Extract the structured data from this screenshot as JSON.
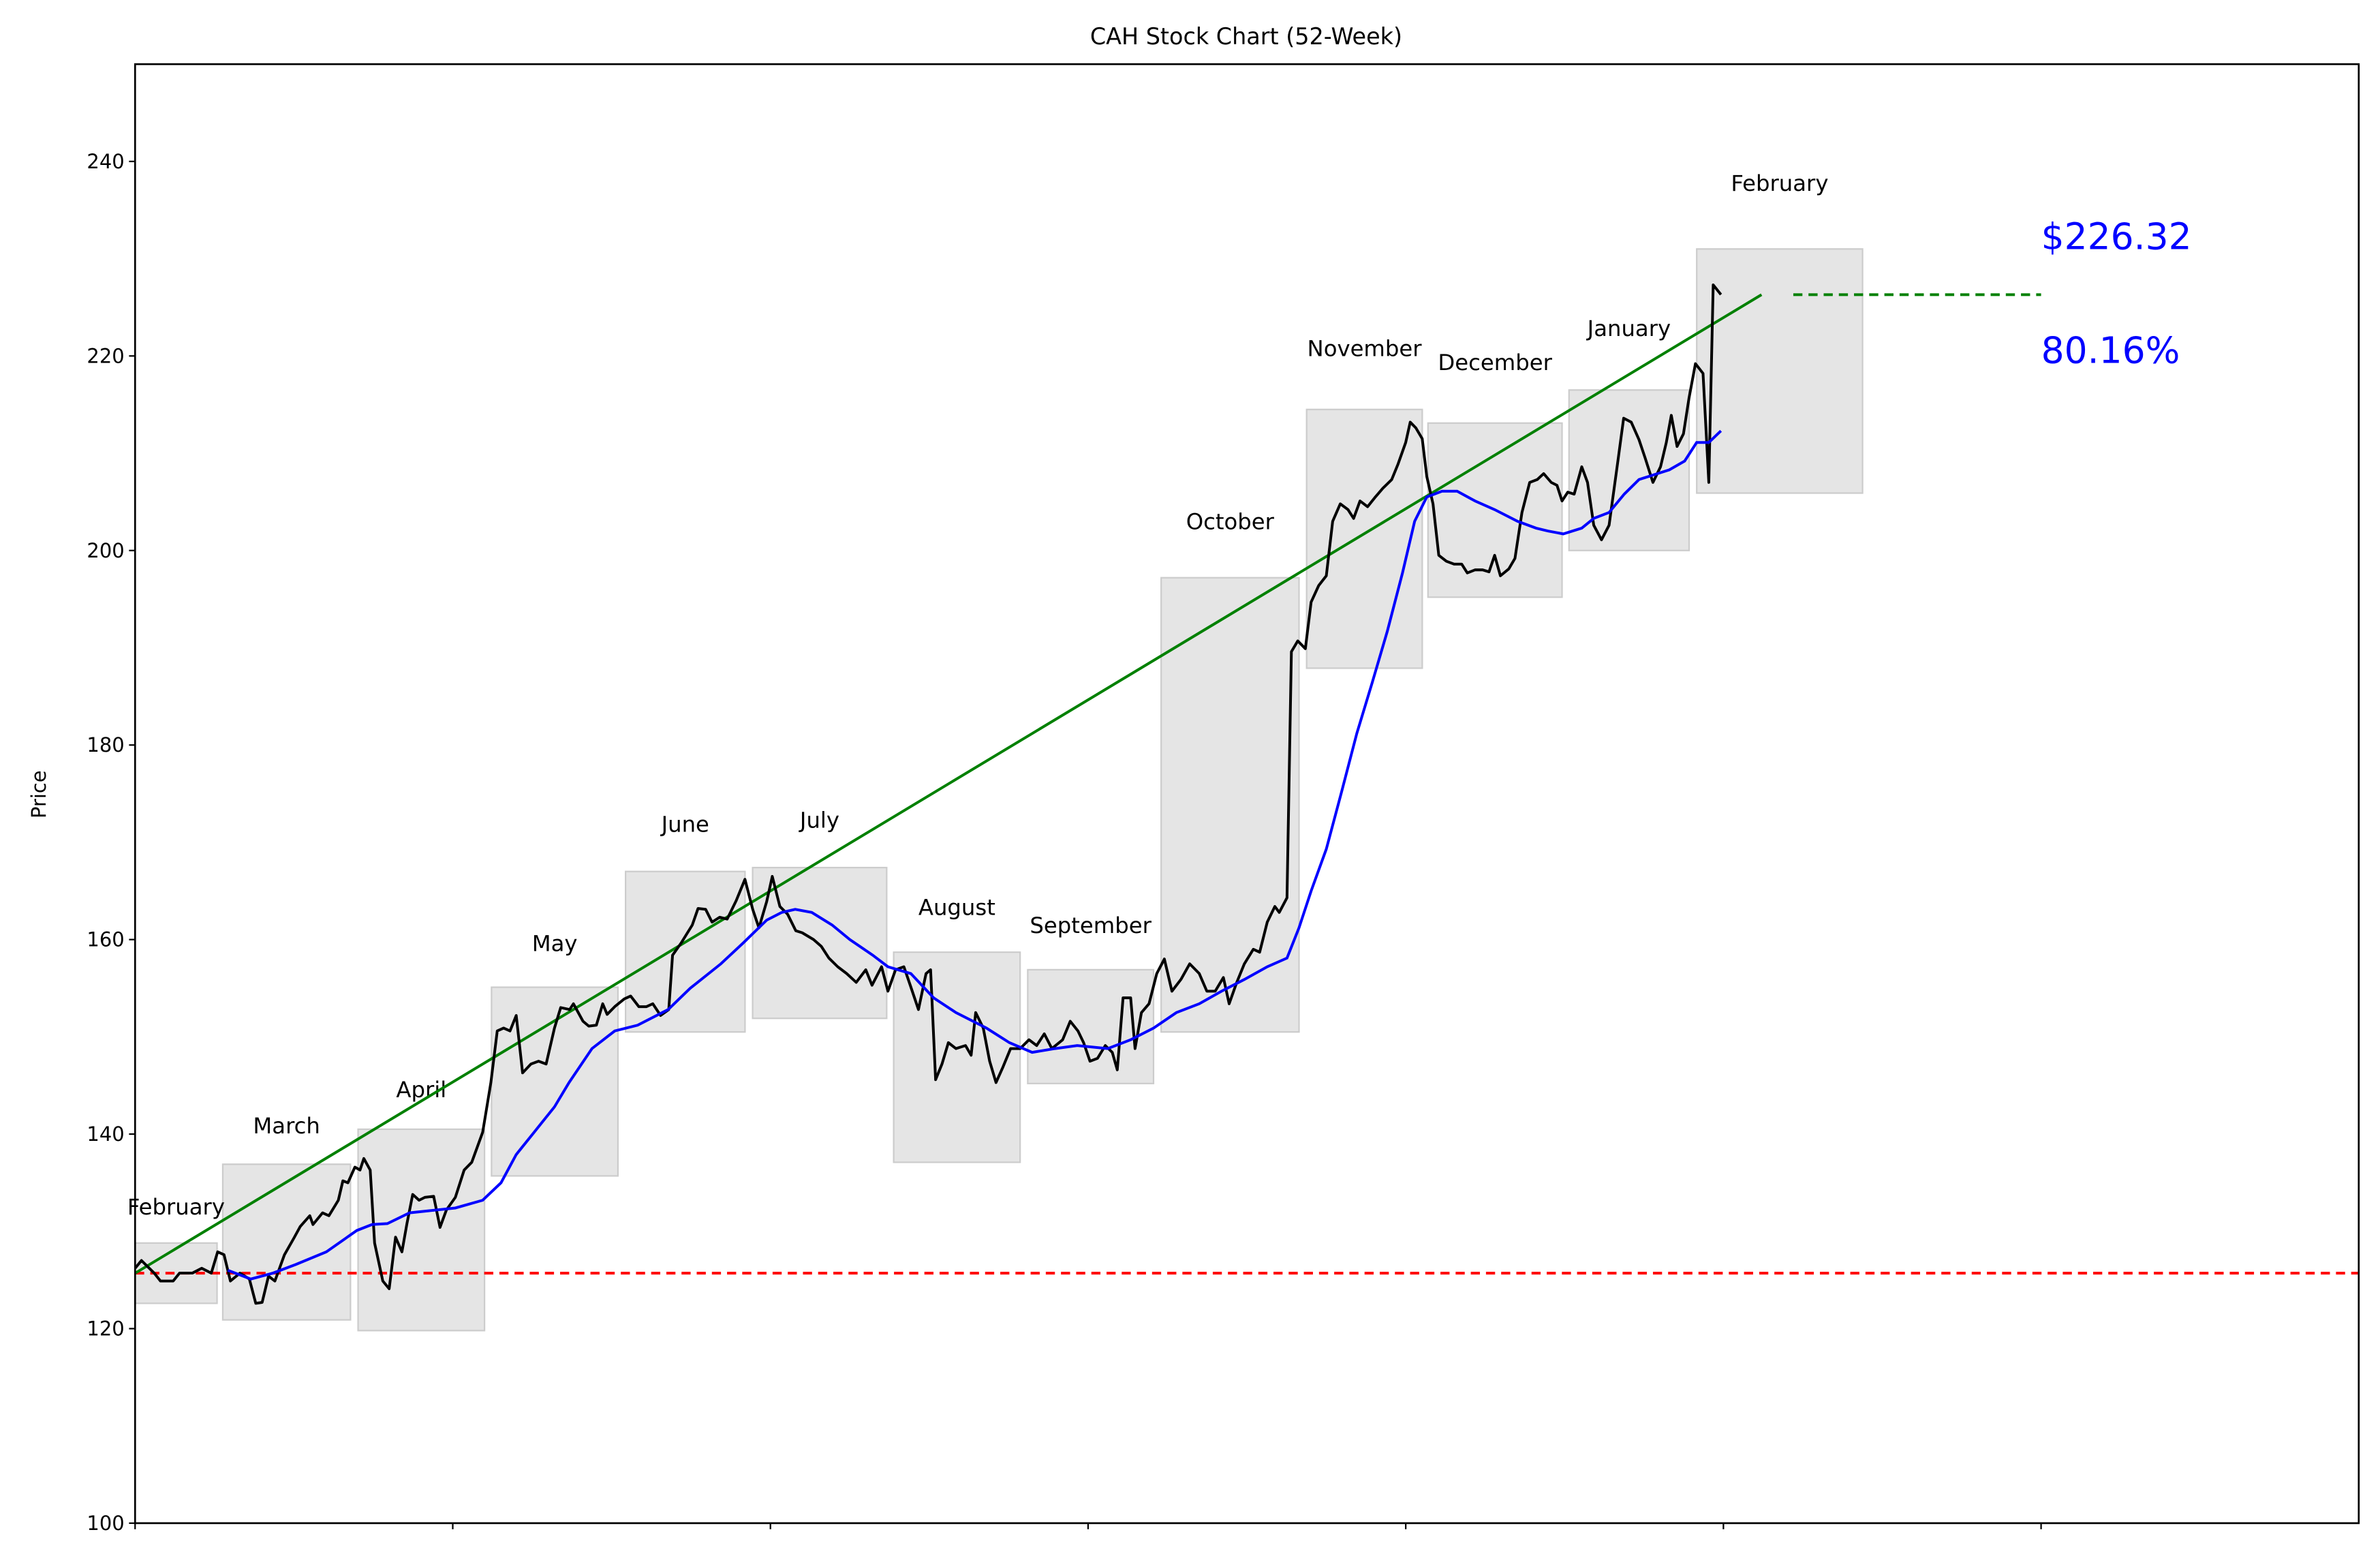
{
  "chart_data": {
    "type": "line",
    "title": "CAH Stock Chart (52-Week)",
    "xlabel": "",
    "ylabel": "Price",
    "xlim": [
      0,
      350
    ],
    "ylim": [
      100,
      250
    ],
    "xticks": [
      0,
      50,
      100,
      150,
      200,
      250,
      300
    ],
    "yticks": [
      100,
      120,
      140,
      160,
      180,
      200,
      220,
      240
    ],
    "ytick_labels": [
      "100",
      "120",
      "140",
      "160",
      "180",
      "200",
      "220",
      "240"
    ],
    "grid": false,
    "colors": {
      "price": "#000000",
      "moving_average": "#0000ff",
      "trend": "#008000",
      "baseline": "#ff0000",
      "month_box": "#e5e5e5",
      "annotation": "#0000ff"
    },
    "price_series": [
      [
        0,
        126.2
      ],
      [
        1,
        127.0
      ],
      [
        3,
        125.7
      ],
      [
        4,
        124.9
      ],
      [
        6,
        124.9
      ],
      [
        7,
        125.7
      ],
      [
        9,
        125.7
      ],
      [
        10.5,
        126.2
      ],
      [
        12,
        125.7
      ],
      [
        13,
        127.9
      ],
      [
        14,
        127.6
      ],
      [
        15,
        124.9
      ],
      [
        16.5,
        125.7
      ],
      [
        18,
        125.1
      ],
      [
        19,
        122.6
      ],
      [
        20,
        122.7
      ],
      [
        21,
        125.4
      ],
      [
        22,
        124.9
      ],
      [
        23.5,
        127.6
      ],
      [
        25,
        129.3
      ],
      [
        26,
        130.5
      ],
      [
        27.5,
        131.6
      ],
      [
        28,
        130.7
      ],
      [
        29.5,
        131.9
      ],
      [
        30.5,
        131.6
      ],
      [
        32,
        133.2
      ],
      [
        32.7,
        135.2
      ],
      [
        33.5,
        135.0
      ],
      [
        34.6,
        136.6
      ],
      [
        35.4,
        136.3
      ],
      [
        36,
        137.5
      ],
      [
        37,
        136.3
      ],
      [
        37.7,
        128.8
      ],
      [
        39,
        124.9
      ],
      [
        40,
        124.1
      ],
      [
        41,
        129.4
      ],
      [
        42,
        127.9
      ],
      [
        42.8,
        130.8
      ],
      [
        43.7,
        133.8
      ],
      [
        44.7,
        133.2
      ],
      [
        45.6,
        133.5
      ],
      [
        47,
        133.6
      ],
      [
        48,
        130.4
      ],
      [
        49,
        132.2
      ],
      [
        50.4,
        133.5
      ],
      [
        51.8,
        136.3
      ],
      [
        53,
        137.1
      ],
      [
        54.7,
        140.2
      ],
      [
        56,
        145.3
      ],
      [
        57,
        150.6
      ],
      [
        58,
        150.9
      ],
      [
        59,
        150.6
      ],
      [
        60,
        152.2
      ],
      [
        61,
        146.3
      ],
      [
        62.3,
        147.2
      ],
      [
        63.5,
        147.5
      ],
      [
        64.7,
        147.2
      ],
      [
        66,
        150.9
      ],
      [
        67,
        153.0
      ],
      [
        68.4,
        152.8
      ],
      [
        69,
        153.4
      ],
      [
        70.5,
        151.6
      ],
      [
        71.4,
        151.1
      ],
      [
        72.6,
        151.2
      ],
      [
        73.6,
        153.4
      ],
      [
        74.3,
        152.3
      ],
      [
        75.5,
        153.1
      ],
      [
        77,
        153.9
      ],
      [
        78,
        154.2
      ],
      [
        79.3,
        153.1
      ],
      [
        80.5,
        153.1
      ],
      [
        81.5,
        153.4
      ],
      [
        82.7,
        152.2
      ],
      [
        84,
        152.8
      ],
      [
        84.6,
        158.4
      ],
      [
        86,
        159.7
      ],
      [
        87.7,
        161.5
      ],
      [
        88.6,
        163.2
      ],
      [
        89.8,
        163.1
      ],
      [
        90.8,
        161.8
      ],
      [
        92,
        162.3
      ],
      [
        93.2,
        162.1
      ],
      [
        94.6,
        164.0
      ],
      [
        96,
        166.2
      ],
      [
        97.2,
        163.1
      ],
      [
        98.2,
        161.2
      ],
      [
        99.4,
        163.9
      ],
      [
        100.3,
        166.5
      ],
      [
        101.5,
        163.4
      ],
      [
        102.7,
        162.6
      ],
      [
        104,
        160.9
      ],
      [
        105,
        160.7
      ],
      [
        106.8,
        160.0
      ],
      [
        108,
        159.3
      ],
      [
        109.2,
        158.1
      ],
      [
        110.6,
        157.2
      ],
      [
        112,
        156.5
      ],
      [
        113.5,
        155.6
      ],
      [
        115,
        156.9
      ],
      [
        116,
        155.3
      ],
      [
        117.5,
        157.2
      ],
      [
        118.5,
        154.7
      ],
      [
        119.7,
        156.9
      ],
      [
        121,
        157.2
      ],
      [
        122,
        155.3
      ],
      [
        123.3,
        152.8
      ],
      [
        124.5,
        156.5
      ],
      [
        125.2,
        156.9
      ],
      [
        126,
        145.6
      ],
      [
        127,
        147.2
      ],
      [
        128,
        149.4
      ],
      [
        129.2,
        148.8
      ],
      [
        130.7,
        149.1
      ],
      [
        131.6,
        148.1
      ],
      [
        132.3,
        152.5
      ],
      [
        133.5,
        150.9
      ],
      [
        134.5,
        147.5
      ],
      [
        135.5,
        145.3
      ],
      [
        136.6,
        146.9
      ],
      [
        137.8,
        148.8
      ],
      [
        139.3,
        148.8
      ],
      [
        140.7,
        149.7
      ],
      [
        141.9,
        149.1
      ],
      [
        143.1,
        150.3
      ],
      [
        144.3,
        148.8
      ],
      [
        146,
        149.7
      ],
      [
        147.2,
        151.6
      ],
      [
        148.4,
        150.6
      ],
      [
        149.3,
        149.4
      ],
      [
        150.3,
        147.5
      ],
      [
        151.5,
        147.8
      ],
      [
        152.7,
        149.1
      ],
      [
        153.8,
        148.4
      ],
      [
        154.6,
        146.6
      ],
      [
        155.5,
        154.0
      ],
      [
        156.7,
        154.0
      ],
      [
        157.4,
        148.8
      ],
      [
        158.4,
        152.5
      ],
      [
        159.6,
        153.4
      ],
      [
        160.8,
        156.5
      ],
      [
        162,
        158.0
      ],
      [
        163.2,
        154.7
      ],
      [
        164.6,
        155.9
      ],
      [
        166,
        157.5
      ],
      [
        167.5,
        156.5
      ],
      [
        168.7,
        154.7
      ],
      [
        170,
        154.7
      ],
      [
        171.3,
        156.1
      ],
      [
        172.2,
        153.4
      ],
      [
        173.4,
        155.6
      ],
      [
        174.6,
        157.5
      ],
      [
        176,
        159.0
      ],
      [
        177,
        158.7
      ],
      [
        178.2,
        161.8
      ],
      [
        179.4,
        163.4
      ],
      [
        180.1,
        162.8
      ],
      [
        181.3,
        164.3
      ],
      [
        182,
        189.6
      ],
      [
        183,
        190.7
      ],
      [
        184.2,
        189.9
      ],
      [
        185.1,
        194.7
      ],
      [
        186.3,
        196.4
      ],
      [
        187.5,
        197.4
      ],
      [
        188.5,
        203.0
      ],
      [
        189.7,
        204.8
      ],
      [
        190.9,
        204.2
      ],
      [
        191.8,
        203.3
      ],
      [
        192.8,
        205.1
      ],
      [
        194,
        204.5
      ],
      [
        195.2,
        205.5
      ],
      [
        196.4,
        206.4
      ],
      [
        197.8,
        207.3
      ],
      [
        198.8,
        208.9
      ],
      [
        200,
        211.1
      ],
      [
        200.7,
        213.2
      ],
      [
        201.6,
        212.6
      ],
      [
        202.6,
        211.5
      ],
      [
        203.3,
        207.6
      ],
      [
        204.3,
        204.8
      ],
      [
        205.2,
        199.5
      ],
      [
        206.4,
        198.9
      ],
      [
        207.6,
        198.6
      ],
      [
        208.8,
        198.6
      ],
      [
        209.7,
        197.7
      ],
      [
        210.9,
        198.0
      ],
      [
        212.1,
        198.0
      ],
      [
        213.1,
        197.8
      ],
      [
        214,
        199.5
      ],
      [
        214.9,
        197.4
      ],
      [
        216.2,
        198.1
      ],
      [
        217.2,
        199.2
      ],
      [
        218.3,
        203.9
      ],
      [
        219.5,
        207.0
      ],
      [
        220.7,
        207.3
      ],
      [
        221.7,
        207.9
      ],
      [
        222.9,
        207.0
      ],
      [
        223.8,
        206.7
      ],
      [
        224.6,
        205.1
      ],
      [
        225.5,
        206.0
      ],
      [
        226.5,
        205.8
      ],
      [
        227.7,
        208.6
      ],
      [
        228.6,
        207.0
      ],
      [
        229.6,
        202.6
      ],
      [
        230.8,
        201.1
      ],
      [
        232,
        202.6
      ],
      [
        233.4,
        209.2
      ],
      [
        234.3,
        213.6
      ],
      [
        235.5,
        213.2
      ],
      [
        236.7,
        211.4
      ],
      [
        237.7,
        209.5
      ],
      [
        238.9,
        207.0
      ],
      [
        240.1,
        208.6
      ],
      [
        241,
        211.1
      ],
      [
        241.8,
        213.9
      ],
      [
        242.7,
        210.7
      ],
      [
        243.7,
        212.0
      ],
      [
        244.6,
        215.7
      ],
      [
        245.6,
        219.2
      ],
      [
        246.8,
        218.2
      ],
      [
        247.7,
        207.0
      ],
      [
        248.4,
        227.3
      ],
      [
        249.6,
        226.3
      ]
    ],
    "moving_average_series": [
      [
        14.6,
        126.0
      ],
      [
        18.2,
        125.1
      ],
      [
        21.7,
        125.7
      ],
      [
        25.3,
        126.6
      ],
      [
        30.1,
        127.9
      ],
      [
        34.9,
        130.1
      ],
      [
        37.3,
        130.7
      ],
      [
        39.7,
        130.8
      ],
      [
        43.2,
        131.9
      ],
      [
        50.4,
        132.4
      ],
      [
        54.7,
        133.2
      ],
      [
        57.6,
        135.0
      ],
      [
        60.0,
        137.9
      ],
      [
        62.8,
        140.2
      ],
      [
        66.0,
        142.8
      ],
      [
        68.3,
        145.3
      ],
      [
        71.9,
        148.8
      ],
      [
        75.5,
        150.6
      ],
      [
        79.1,
        151.2
      ],
      [
        83.9,
        152.8
      ],
      [
        87.4,
        155.0
      ],
      [
        92.2,
        157.5
      ],
      [
        95.8,
        159.7
      ],
      [
        99.4,
        162.0
      ],
      [
        101.8,
        162.8
      ],
      [
        103.9,
        163.1
      ],
      [
        106.5,
        162.8
      ],
      [
        109.7,
        161.5
      ],
      [
        112.5,
        160.0
      ],
      [
        116.1,
        158.4
      ],
      [
        118.5,
        157.2
      ],
      [
        122.1,
        156.5
      ],
      [
        125.7,
        154.0
      ],
      [
        129.2,
        152.5
      ],
      [
        134.0,
        150.9
      ],
      [
        137.6,
        149.4
      ],
      [
        141.2,
        148.4
      ],
      [
        144.8,
        148.8
      ],
      [
        148.3,
        149.1
      ],
      [
        153.1,
        148.8
      ],
      [
        156.7,
        149.7
      ],
      [
        160.3,
        150.9
      ],
      [
        163.9,
        152.5
      ],
      [
        167.5,
        153.4
      ],
      [
        171.0,
        154.7
      ],
      [
        174.6,
        155.9
      ],
      [
        178.2,
        157.2
      ],
      [
        181.3,
        158.1
      ],
      [
        183.2,
        161.2
      ],
      [
        185.1,
        165.0
      ],
      [
        187.5,
        169.3
      ],
      [
        189.9,
        175.2
      ],
      [
        192.3,
        181.2
      ],
      [
        194.7,
        186.4
      ],
      [
        197.1,
        191.7
      ],
      [
        199.5,
        197.7
      ],
      [
        201.4,
        203.0
      ],
      [
        203.3,
        205.5
      ],
      [
        205.7,
        206.1
      ],
      [
        208.1,
        206.1
      ],
      [
        210.9,
        205.1
      ],
      [
        214.0,
        204.2
      ],
      [
        217.6,
        203.0
      ],
      [
        220.5,
        202.3
      ],
      [
        222.4,
        202.0
      ],
      [
        224.8,
        201.7
      ],
      [
        227.7,
        202.3
      ],
      [
        229.6,
        203.3
      ],
      [
        232.0,
        203.9
      ],
      [
        234.4,
        205.8
      ],
      [
        236.7,
        207.3
      ],
      [
        239.1,
        207.8
      ],
      [
        241.5,
        208.3
      ],
      [
        243.9,
        209.2
      ],
      [
        245.8,
        211.1
      ],
      [
        247.7,
        211.1
      ],
      [
        249.6,
        212.3
      ]
    ],
    "trend_line": {
      "start": [
        0,
        125.7
      ],
      "end": [
        256,
        226.3
      ]
    },
    "baseline": {
      "value": 125.7,
      "style": "dashed"
    },
    "current_price_line": {
      "value": 226.3,
      "x_range": [
        261,
        300
      ],
      "style": "dashed"
    },
    "months": [
      {
        "label": "February",
        "x_range": [
          0,
          12.9
        ],
        "low": 122.6,
        "high": 128.8
      },
      {
        "label": "March",
        "x_range": [
          13.8,
          33.9
        ],
        "low": 120.9,
        "high": 136.9
      },
      {
        "label": "April",
        "x_range": [
          35.1,
          55.0
        ],
        "low": 119.8,
        "high": 140.5
      },
      {
        "label": "May",
        "x_range": [
          56.1,
          76.0
        ],
        "low": 135.7,
        "high": 155.1
      },
      {
        "label": "June",
        "x_range": [
          77.2,
          96.0
        ],
        "low": 150.5,
        "high": 167.0
      },
      {
        "label": "July",
        "x_range": [
          97.2,
          118.3
        ],
        "low": 151.9,
        "high": 167.4
      },
      {
        "label": "August",
        "x_range": [
          119.4,
          139.3
        ],
        "low": 137.1,
        "high": 158.7
      },
      {
        "label": "September",
        "x_range": [
          140.5,
          160.3
        ],
        "low": 145.2,
        "high": 156.9
      },
      {
        "label": "October",
        "x_range": [
          161.5,
          183.2
        ],
        "low": 150.5,
        "high": 197.2
      },
      {
        "label": "November",
        "x_range": [
          184.4,
          202.6
        ],
        "low": 187.9,
        "high": 214.5
      },
      {
        "label": "December",
        "x_range": [
          203.5,
          224.6
        ],
        "low": 195.2,
        "high": 213.1
      },
      {
        "label": "January",
        "x_range": [
          225.7,
          244.6
        ],
        "low": 200.0,
        "high": 216.5
      },
      {
        "label": "February",
        "x_range": [
          245.8,
          271.9
        ],
        "low": 205.9,
        "high": 231.0
      }
    ],
    "annotations": {
      "price": "$226.32",
      "change": "80.16%"
    }
  }
}
